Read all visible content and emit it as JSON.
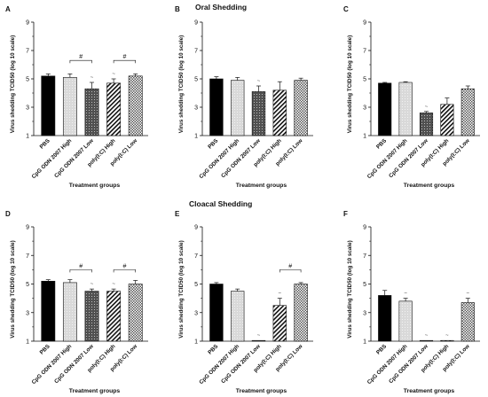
{
  "section_titles": {
    "top": "Oral Shedding",
    "bottom": "Cloacal Shedding"
  },
  "colors": {
    "ink": "#111111",
    "pbs": "#000000",
    "cpg_high": "#d9d9d9",
    "cpg_low": "#3a3a3a"
  },
  "chart_data": [
    {
      "panel": "A",
      "type": "bar",
      "categories": [
        "PBS",
        "CpG ODN 2007 High",
        "CpG ODN 2007 Low",
        "poly(I:C) High",
        "poly(I:C) Low"
      ],
      "values": [
        5.2,
        5.1,
        4.3,
        4.7,
        5.2
      ],
      "errors": [
        0.15,
        0.25,
        0.45,
        0.3,
        0.15
      ],
      "tilde": [
        false,
        false,
        true,
        true,
        false
      ],
      "brackets": [
        {
          "from": 1,
          "to": 2,
          "label": "#",
          "y": 6.3
        },
        {
          "from": 3,
          "to": 4,
          "label": "#",
          "y": 6.3
        }
      ],
      "ylabel": "Virus shedding TCID50 (log 10 scale)",
      "xlabel": "Treatment groups",
      "ylim": [
        1,
        9
      ],
      "yticks": [
        1,
        3,
        5,
        7,
        9
      ],
      "minor_ticks": [
        2,
        4,
        6,
        8
      ]
    },
    {
      "panel": "B",
      "type": "bar",
      "categories": [
        "PBS",
        "CpG ODN 2007 High",
        "CpG ODN 2007 Low",
        "poly(I:C) High",
        "poly(I:C) Low"
      ],
      "values": [
        5.0,
        4.9,
        4.1,
        4.2,
        4.9
      ],
      "errors": [
        0.15,
        0.2,
        0.4,
        0.6,
        0.15
      ],
      "tilde": [
        false,
        false,
        true,
        false,
        false
      ],
      "brackets": [],
      "ylabel": "Virus shedding TCID50 (log 10 scale)",
      "xlabel": "Treatment groups",
      "ylim": [
        1,
        9
      ],
      "yticks": [
        1,
        3,
        5,
        7,
        9
      ],
      "minor_ticks": [
        2,
        4,
        6,
        8
      ]
    },
    {
      "panel": "C",
      "type": "bar",
      "categories": [
        "PBS",
        "CpG ODN 2007 High",
        "CpG ODN 2007 Low",
        "poly(I:C) High",
        "poly(I:C) Low"
      ],
      "values": [
        4.7,
        4.75,
        2.6,
        3.2,
        4.3
      ],
      "errors": [
        0.05,
        0.05,
        0.1,
        0.45,
        0.2
      ],
      "tilde": [
        false,
        false,
        true,
        false,
        false
      ],
      "brackets": [],
      "ylabel": "Virus shedding TCID50 (log 10 scale)",
      "xlabel": "Treatment groups",
      "ylim": [
        1,
        9
      ],
      "yticks": [
        1,
        3,
        5,
        7,
        9
      ],
      "minor_ticks": [
        2,
        4,
        6,
        8
      ]
    },
    {
      "panel": "D",
      "type": "bar",
      "categories": [
        "PBS",
        "CpG ODN 2007 High",
        "CpG ODN 2007 Low",
        "poly(I:C) High",
        "poly(I:C) Low"
      ],
      "values": [
        5.2,
        5.1,
        4.5,
        4.5,
        5.0
      ],
      "errors": [
        0.1,
        0.2,
        0.15,
        0.15,
        0.25
      ],
      "tilde": [
        false,
        false,
        true,
        true,
        false
      ],
      "brackets": [
        {
          "from": 1,
          "to": 2,
          "label": "#",
          "y": 6.0
        },
        {
          "from": 3,
          "to": 4,
          "label": "#",
          "y": 6.0
        }
      ],
      "ylabel": "Virus shedding TCID50 (log 10 scale)",
      "xlabel": "Treatment groups",
      "ylim": [
        1,
        9
      ],
      "yticks": [
        1,
        3,
        5,
        7,
        9
      ],
      "minor_ticks": [
        2,
        4,
        6,
        8
      ]
    },
    {
      "panel": "E",
      "type": "bar",
      "categories": [
        "PBS",
        "CpG ODN 2007 High",
        "CpG ODN 2007 Low",
        "poly(I:C) High",
        "poly(I:C) Low"
      ],
      "values": [
        5.0,
        4.5,
        1.05,
        3.5,
        5.0
      ],
      "errors": [
        0.1,
        0.15,
        0,
        0.5,
        0.1
      ],
      "tilde": [
        false,
        false,
        true,
        true,
        false
      ],
      "brackets": [
        {
          "from": 3,
          "to": 4,
          "label": "#",
          "y": 6.0
        }
      ],
      "ylabel": "Virus shedding TCID50 (log 10 scale)",
      "xlabel": "Treatment groups",
      "ylim": [
        1,
        9
      ],
      "yticks": [
        1,
        3,
        5,
        7,
        9
      ],
      "minor_ticks": [
        2,
        4,
        6,
        8
      ]
    },
    {
      "panel": "F",
      "type": "bar",
      "categories": [
        "PBS",
        "CpG ODN 2007 High",
        "CpG ODN 2007 Low",
        "poly(I:C) High",
        "poly(I:C) Low"
      ],
      "values": [
        4.2,
        3.8,
        1.05,
        1.05,
        3.7
      ],
      "errors": [
        0.35,
        0.2,
        0,
        0,
        0.3
      ],
      "tilde": [
        false,
        true,
        true,
        true,
        true
      ],
      "brackets": [],
      "ylabel": "Virus shedding TCID50 (log 10 scale)",
      "xlabel": "Treatment groups",
      "ylim": [
        1,
        9
      ],
      "yticks": [
        1,
        3,
        5,
        7,
        9
      ],
      "minor_ticks": [
        2,
        4,
        6,
        8
      ]
    }
  ]
}
